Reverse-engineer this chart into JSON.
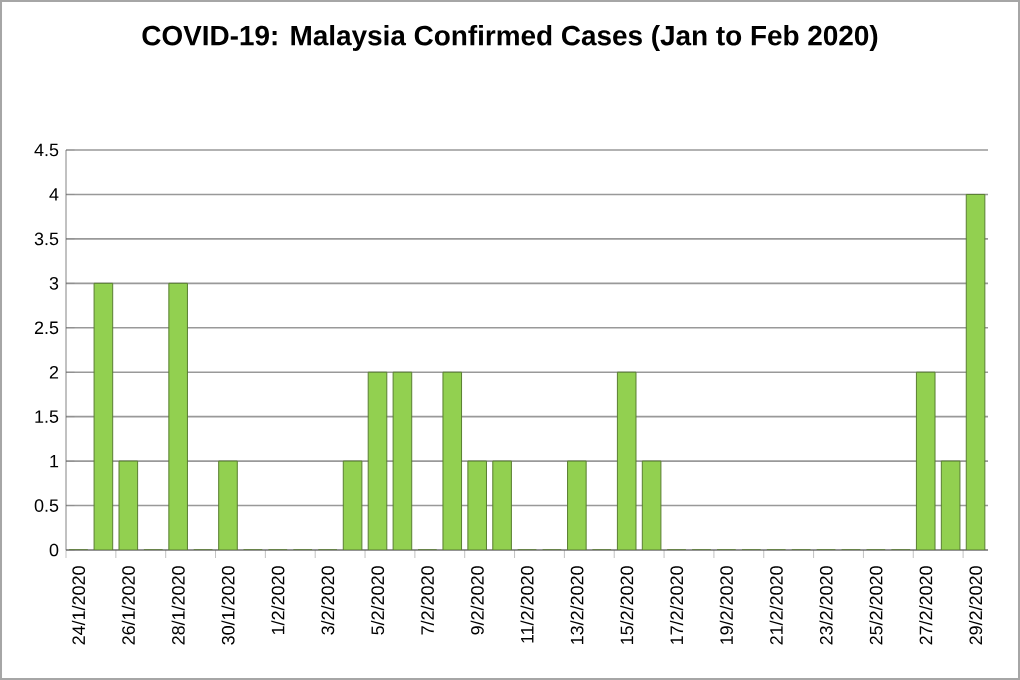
{
  "chart_data": {
    "type": "bar",
    "title": "COVID-19:  Malaysia Confirmed Cases (Jan to Feb 2020)",
    "categories": [
      "24/1/2020",
      null,
      "26/1/2020",
      null,
      "28/1/2020",
      null,
      "30/1/2020",
      null,
      "1/2/2020",
      null,
      "3/2/2020",
      null,
      "5/2/2020",
      null,
      "7/2/2020",
      null,
      "9/2/2020",
      null,
      "11/2/2020",
      null,
      "13/2/2020",
      null,
      "15/2/2020",
      null,
      "17/2/2020",
      null,
      "19/2/2020",
      null,
      "21/2/2020",
      null,
      "23/2/2020",
      null,
      "25/2/2020",
      null,
      "27/2/2020",
      null,
      "29/2/2020"
    ],
    "values": [
      0,
      3,
      1,
      0,
      3,
      0,
      1,
      0,
      0,
      0,
      0,
      1,
      2,
      2,
      0,
      2,
      1,
      1,
      0,
      0,
      1,
      0,
      2,
      1,
      0,
      0,
      0,
      0,
      0,
      0,
      0,
      0,
      0,
      0,
      2,
      1,
      4
    ],
    "color": "#92d050",
    "ylim": [
      0,
      4.5
    ],
    "yticks": [
      0,
      0.5,
      1,
      1.5,
      2,
      2.5,
      3,
      3.5,
      4,
      4.5
    ],
    "grid": "y"
  }
}
